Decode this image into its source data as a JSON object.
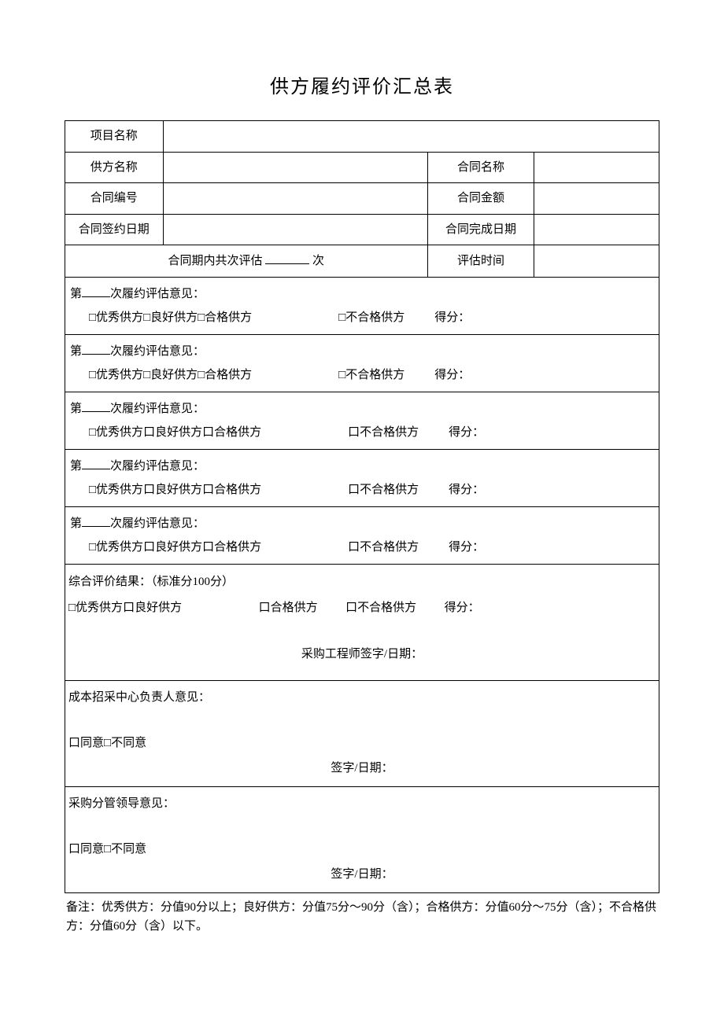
{
  "document": {
    "title": "供方履约评价汇总表",
    "background_color": "#ffffff",
    "border_color": "#000000",
    "font_family": "SimSun",
    "title_fontsize": 24,
    "body_fontsize": 15
  },
  "header_rows": {
    "project_label": "项目名称",
    "supplier_label": "供方名称",
    "contract_name_label": "合同名称",
    "contract_no_label": "合同编号",
    "contract_amount_label": "合同金额",
    "sign_date_label": "合同签约日期",
    "finish_date_label": "合同完成日期",
    "period_count_prefix": "合同期内共次评估",
    "period_count_suffix": "次",
    "eval_time_label": "评估时间"
  },
  "evaluation_template": {
    "prefix": "第",
    "suffix": "次履约评估意见：",
    "opt_excellent": "□优秀供方",
    "opt_good_cb": "□良好供方",
    "opt_pass_cb": "□合格供方",
    "opt_good_sq": "口良好供方",
    "opt_pass_sq": "口合格供方",
    "opt_fail_cb": "□不合格供方",
    "opt_fail_sq": "口不合格供方",
    "score_label": "得分："
  },
  "evaluations": [
    {
      "good_char": "cb",
      "pass_char": "cb",
      "fail_char": "cb"
    },
    {
      "good_char": "cb",
      "pass_char": "cb",
      "fail_char": "cb"
    },
    {
      "good_char": "sq",
      "pass_char": "sq",
      "fail_char": "sq"
    },
    {
      "good_char": "sq",
      "pass_char": "sq",
      "fail_char": "sq"
    },
    {
      "good_char": "sq",
      "pass_char": "sq",
      "fail_char": "sq"
    }
  ],
  "result": {
    "heading": "综合评价结果：（标准分100分）",
    "opt_excellent": "□优秀供方",
    "opt_good": "口良好供方",
    "opt_pass": "口合格供方",
    "opt_fail": "口不合格供方",
    "score_label": "得分：",
    "engineer_sign": "采购工程师签字/日期："
  },
  "opinion1": {
    "heading": "成本招采中心负责人意见：",
    "agree": "口同意",
    "disagree": "□不同意",
    "sign": "签字/日期："
  },
  "opinion2": {
    "heading": "采购分管领导意见：",
    "agree": "口同意",
    "disagree": "□不同意",
    "sign": "签字/日期："
  },
  "note": {
    "text": "备注：优秀供方：分值90分以上；良好供方：分值75分～90分（含）；合格供方：分值60分～75分（含）；不合格供方：分值60分（含）以下。"
  },
  "layout": {
    "col_widths_percent": [
      16.5,
      44.5,
      18,
      21
    ],
    "eval_row_count": 5
  }
}
